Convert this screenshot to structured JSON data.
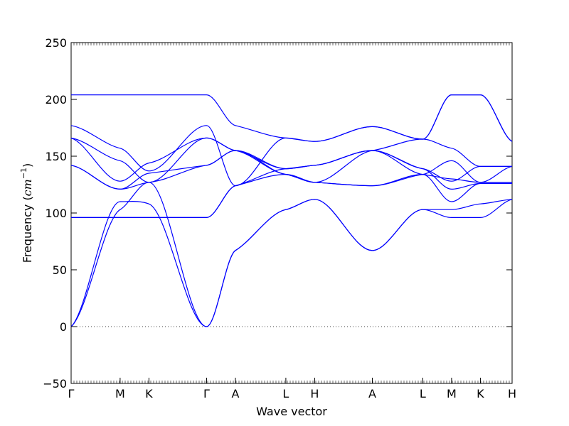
{
  "chart_data": {
    "type": "line",
    "title": "",
    "xlabel": "Wave vector",
    "ylabel": {
      "prefix": "Frequency (",
      "unit_main": "cm",
      "unit_exp": "−1",
      "suffix": ")"
    },
    "ylim": [
      -50,
      250
    ],
    "yticks": [
      -50,
      0,
      50,
      100,
      150,
      200,
      250
    ],
    "ytick_labels": [
      "−50",
      "0",
      "50",
      "100",
      "150",
      "200",
      "250"
    ],
    "xlim": [
      0,
      15.3
    ],
    "high_symmetry_points": [
      {
        "label": "Γ",
        "x": 0.0
      },
      {
        "label": "M",
        "x": 1.7
      },
      {
        "label": "K",
        "x": 2.7
      },
      {
        "label": "Γ",
        "x": 4.7
      },
      {
        "label": "A",
        "x": 5.7
      },
      {
        "label": "L",
        "x": 7.45
      },
      {
        "label": "H",
        "x": 8.45
      },
      {
        "label": "A",
        "x": 10.45
      },
      {
        "label": "L",
        "x": 12.2
      },
      {
        "label": "M",
        "x": 13.2
      },
      {
        "label": "K",
        "x": 14.2
      },
      {
        "label": "H",
        "x": 15.3
      }
    ],
    "zero_line": true,
    "line_color": "#0000ff",
    "bands": [
      {
        "x": [
          0,
          1.7,
          2.7,
          4.7,
          5.7,
          7.45,
          8.45,
          10.45,
          12.2,
          13.2,
          14.2,
          15.3
        ],
        "y": [
          0,
          103,
          127,
          0,
          67,
          103,
          112,
          67,
          103,
          96,
          96,
          112
        ]
      },
      {
        "x": [
          0,
          1.7,
          2.7,
          4.7,
          5.7,
          7.45,
          8.45,
          10.45,
          12.2,
          13.2,
          14.2,
          15.3
        ],
        "y": [
          0,
          110,
          108,
          0,
          67,
          103,
          112,
          67,
          103,
          103,
          108,
          112
        ]
      },
      {
        "x": [
          0,
          1.7,
          2.7,
          4.7,
          5.7,
          7.45,
          8.45,
          10.45,
          12.2,
          13.2,
          14.2,
          15.3
        ],
        "y": [
          96,
          96,
          96,
          96,
          124,
          134,
          127,
          124,
          134,
          110,
          126,
          126
        ]
      },
      {
        "x": [
          0,
          1.7,
          2.7,
          4.7,
          5.7,
          7.45,
          8.45,
          10.45,
          12.2,
          13.2,
          14.2,
          15.3
        ],
        "y": [
          96,
          96,
          96,
          96,
          124,
          139,
          142,
          155,
          139,
          121,
          126,
          126
        ]
      },
      {
        "x": [
          0,
          1.7,
          2.7,
          4.7,
          5.7,
          7.45,
          8.45,
          10.45,
          12.2,
          13.2,
          14.2,
          15.3
        ],
        "y": [
          142,
          121,
          127,
          142,
          155,
          134,
          127,
          124,
          134,
          146,
          127,
          141
        ]
      },
      {
        "x": [
          0,
          1.7,
          2.7,
          4.7,
          5.7,
          7.45,
          8.45,
          10.45,
          12.2,
          13.2,
          14.2,
          15.3
        ],
        "y": [
          142,
          121,
          135,
          142,
          155,
          139,
          142,
          155,
          139,
          128,
          141,
          141
        ]
      },
      {
        "x": [
          0,
          1.7,
          2.7,
          4.7,
          5.7,
          7.45,
          8.45,
          10.45,
          12.2,
          13.2,
          14.2,
          15.3
        ],
        "y": [
          166,
          146,
          127,
          166,
          155,
          134,
          127,
          155,
          165,
          157,
          141,
          141
        ]
      },
      {
        "x": [
          0,
          1.7,
          2.7,
          4.7,
          5.7,
          7.45,
          8.45,
          10.45,
          12.2,
          13.2,
          14.2,
          15.3
        ],
        "y": [
          177,
          157,
          137,
          177,
          124,
          166,
          163,
          176,
          165,
          204,
          204,
          163
        ]
      },
      {
        "x": [
          0,
          1.7,
          2.7,
          4.7,
          5.7,
          7.45,
          8.45,
          10.45,
          12.2,
          13.2,
          14.2,
          15.3
        ],
        "y": [
          204,
          204,
          204,
          204,
          177,
          166,
          163,
          176,
          165,
          204,
          204,
          163
        ]
      },
      {
        "x": [
          0,
          1.7,
          2.7,
          4.7,
          5.7,
          7.45,
          8.45,
          10.45,
          12.2,
          13.2,
          14.2,
          15.3
        ],
        "y": [
          166,
          128,
          144,
          166,
          155,
          139,
          142,
          155,
          134,
          130,
          127,
          127
        ]
      }
    ]
  }
}
